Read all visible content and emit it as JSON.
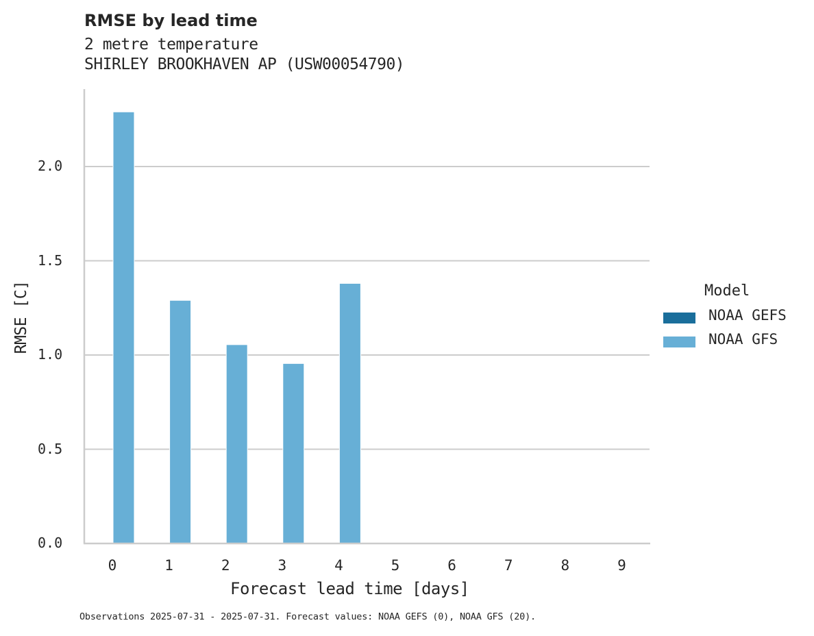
{
  "header": {
    "title": "RMSE by lead time",
    "subtitle_line1": "2 metre temperature",
    "subtitle_line2": "SHIRLEY BROOKHAVEN AP (USW00054790)"
  },
  "axes": {
    "xlabel": "Forecast lead time [days]",
    "ylabel": "RMSE [C]",
    "yticks": [
      "0.0",
      "0.5",
      "1.0",
      "1.5",
      "2.0"
    ],
    "xticks": [
      "0",
      "1",
      "2",
      "3",
      "4",
      "5",
      "6",
      "7",
      "8",
      "9"
    ]
  },
  "legend": {
    "title": "Model",
    "items": [
      {
        "label": "NOAA GEFS",
        "color": "#1a6e9b"
      },
      {
        "label": "NOAA GFS",
        "color": "#67afd6"
      }
    ]
  },
  "footnote": "Observations 2025-07-31 - 2025-07-31. Forecast values: NOAA GEFS (0), NOAA GFS (20).",
  "colors": {
    "gefs": "#1a6e9b",
    "gfs": "#67afd6",
    "grid": "#cccccc",
    "axis": "#cccccc",
    "text": "#262626"
  },
  "chart_data": {
    "type": "bar",
    "title": "RMSE by lead time",
    "subtitle": "2 metre temperature — SHIRLEY BROOKHAVEN AP (USW00054790)",
    "xlabel": "Forecast lead time [days]",
    "ylabel": "RMSE [C]",
    "categories": [
      "0",
      "1",
      "2",
      "3",
      "4",
      "5",
      "6",
      "7",
      "8",
      "9"
    ],
    "series": [
      {
        "name": "NOAA GEFS",
        "color": "#1a6e9b",
        "values": [
          null,
          null,
          null,
          null,
          null,
          null,
          null,
          null,
          null,
          null
        ]
      },
      {
        "name": "NOAA GFS",
        "color": "#67afd6",
        "values": [
          2.29,
          1.29,
          1.055,
          0.955,
          1.38,
          null,
          null,
          null,
          null,
          null
        ]
      }
    ],
    "ylim": [
      0,
      2.41
    ],
    "yticks": [
      0.0,
      0.5,
      1.0,
      1.5,
      2.0
    ],
    "grid": "horizontal",
    "legend_position": "right",
    "legend_title": "Model",
    "footnote": "Observations 2025-07-31 - 2025-07-31. Forecast values: NOAA GEFS (0), NOAA GFS (20)."
  }
}
